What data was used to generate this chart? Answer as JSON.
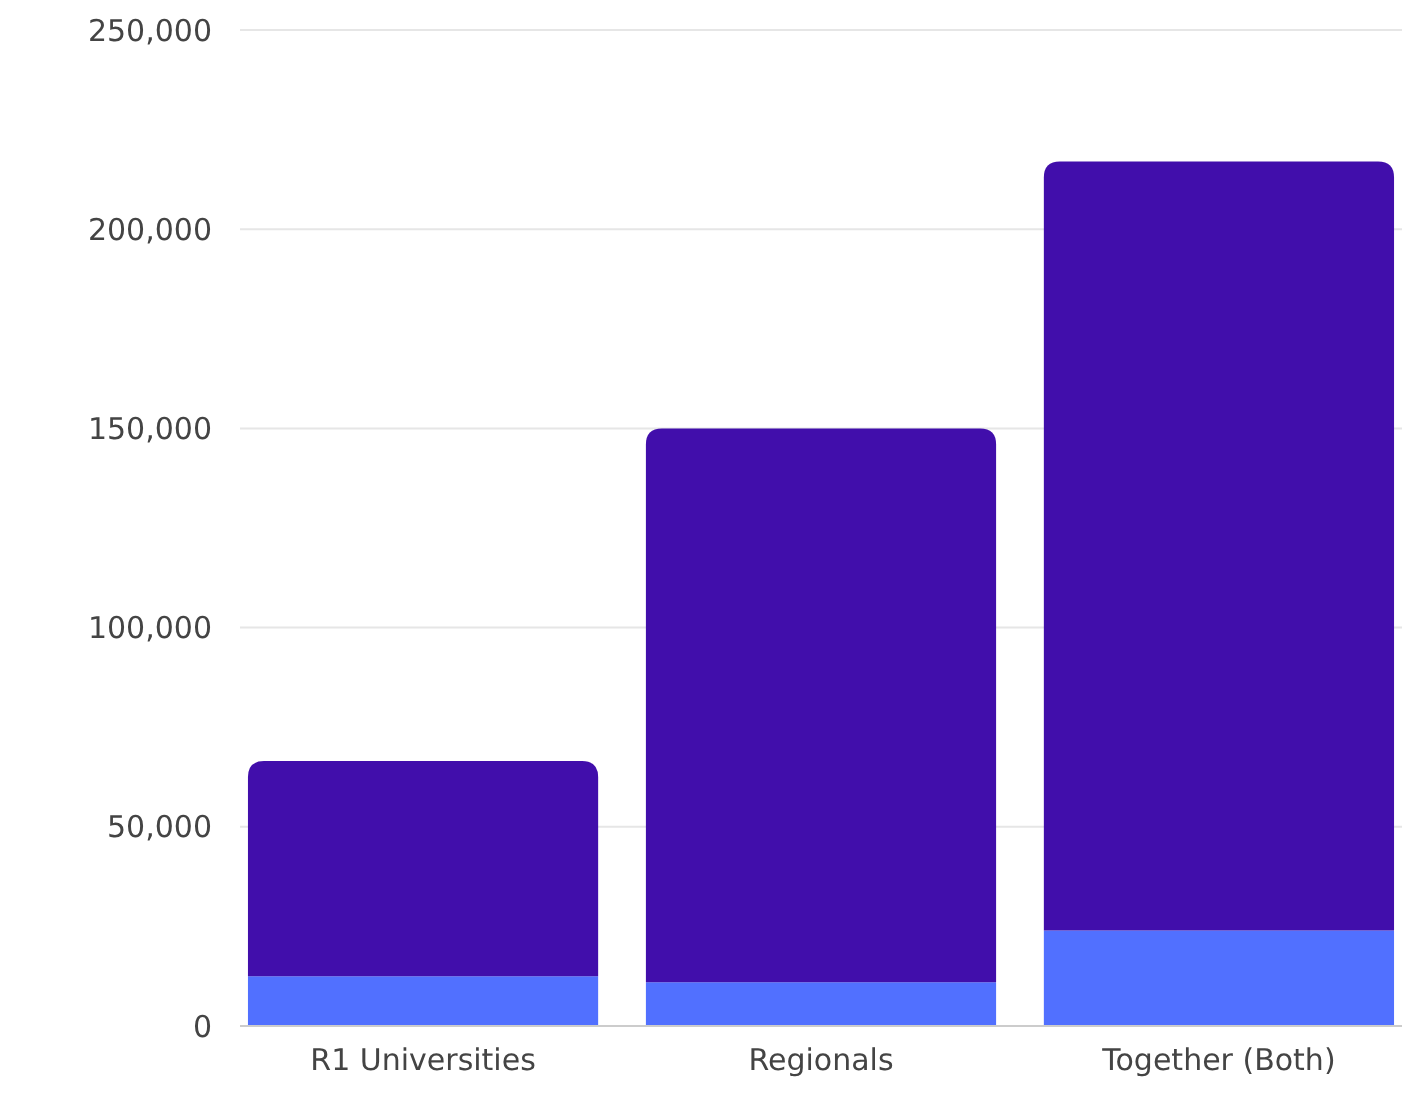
{
  "chart_data": {
    "type": "bar",
    "stacked": true,
    "categories": [
      "R1 Universities",
      "Regionals",
      "Together (Both)"
    ],
    "series": [
      {
        "color": "#5170ff",
        "values": [
          12500,
          11000,
          24000
        ]
      },
      {
        "color": "#410eab",
        "values": [
          54000,
          139000,
          193000
        ]
      }
    ],
    "ylim": [
      0,
      250000
    ],
    "yticks": [
      {
        "value": 0,
        "label": "0"
      },
      {
        "value": 50000,
        "label": "50,000"
      },
      {
        "value": 100000,
        "label": "100,000"
      },
      {
        "value": 150000,
        "label": "150,000"
      },
      {
        "value": 200000,
        "label": "200,000"
      },
      {
        "value": 250000,
        "label": "250,000"
      }
    ],
    "grid": "y"
  }
}
